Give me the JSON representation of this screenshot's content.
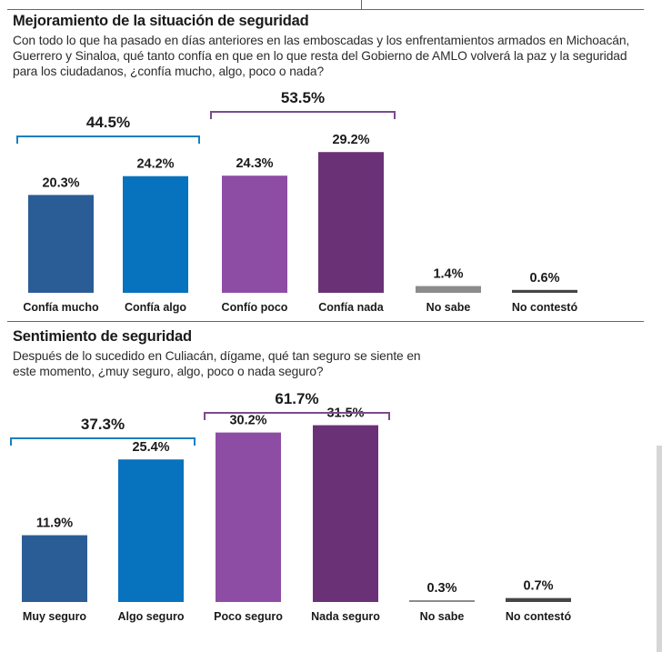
{
  "section1": {
    "title": "Mejoramiento de la situación de seguridad",
    "question": "Con todo lo que ha pasado en días anteriores en las emboscadas y los enfrentamientos armados en Michoacán, Guerrero y Sinaloa, qué tanto confía en que en lo que resta del Gobierno de AMLO volverá la paz y la seguridad para los ciudadanos, ¿confía mucho, algo, poco o nada?"
  },
  "section2": {
    "title": "Sentimiento de seguridad",
    "question": "Después de lo sucedido en Culiacán, dígame, qué tan seguro se siente en este momento, ¿muy seguro, algo, poco o nada seguro?"
  },
  "colors": {
    "dark_blue": "#2a5d96",
    "blue": "#0772bd",
    "light_purple": "#8e4da5",
    "dark_purple": "#6b3177",
    "gray": "#8c8c8c",
    "dark_gray": "#454545",
    "bracket_blue": "#1b7fbf",
    "bracket_purple": "#7a4b8f"
  },
  "chart_data": [
    {
      "type": "bar",
      "categories": [
        "Confía mucho",
        "Confía algo",
        "Confío poco",
        "Confía nada",
        "No sabe",
        "No contestó"
      ],
      "values": [
        20.3,
        24.2,
        24.3,
        29.2,
        1.4,
        0.6
      ],
      "value_labels": [
        "20.3%",
        "24.2%",
        "24.3%",
        "29.2%",
        "1.4%",
        "0.6%"
      ],
      "bar_colors": [
        "dark_blue",
        "blue",
        "light_purple",
        "dark_purple",
        "gray",
        "dark_gray"
      ],
      "groups": [
        {
          "label": "44.5%",
          "value": 44.5,
          "from": 0,
          "to": 1,
          "color": "bracket_blue"
        },
        {
          "label": "53.5%",
          "value": 53.5,
          "from": 2,
          "to": 3,
          "color": "bracket_purple"
        }
      ],
      "ylim": [
        0,
        35
      ],
      "grid": false
    },
    {
      "type": "bar",
      "categories": [
        "Muy seguro",
        "Algo seguro",
        "Poco seguro",
        "Nada seguro",
        "No sabe",
        "No contestó"
      ],
      "values": [
        11.9,
        25.4,
        30.2,
        31.5,
        0.3,
        0.7
      ],
      "value_labels": [
        "11.9%",
        "25.4%",
        "30.2%",
        "31.5%",
        "0.3%",
        "0.7%"
      ],
      "bar_colors": [
        "dark_blue",
        "blue",
        "light_purple",
        "dark_purple",
        "gray",
        "dark_gray"
      ],
      "groups": [
        {
          "label": "37.3%",
          "value": 37.3,
          "from": 0,
          "to": 1,
          "color": "bracket_blue"
        },
        {
          "label": "61.7%",
          "value": 61.7,
          "from": 2,
          "to": 3,
          "color": "bracket_purple"
        }
      ],
      "ylim": [
        0,
        35
      ],
      "grid": false
    }
  ]
}
